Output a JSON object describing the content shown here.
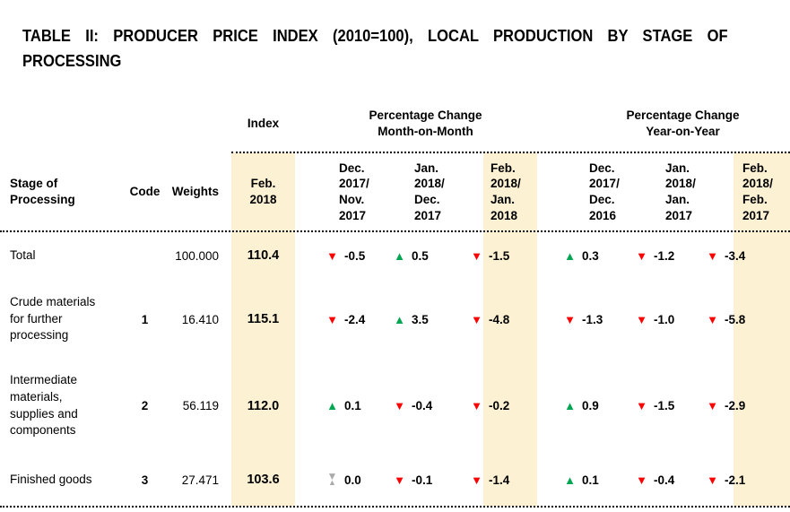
{
  "title": {
    "line1": "TABLE II: PRODUCER PRICE INDEX (2010=100), LOCAL PRODUCTION BY STAGE OF",
    "line2": "PROCESSING"
  },
  "table": {
    "group_headers": {
      "index": "Index",
      "mom_line1": "Percentage Change",
      "mom_line2": "Month-on-Month",
      "yoy_line1": "Percentage Change",
      "yoy_line2": "Year-on-Year"
    },
    "column_headers": {
      "stage": "Stage of\nProcessing",
      "code": "Code",
      "weights": "Weights",
      "index_period": "Feb.\n2018",
      "mom": [
        "Dec.\n2017/\nNov.\n2017",
        "Jan.\n2018/\nDec.\n2017",
        "Feb.\n2018/\nJan.\n2018"
      ],
      "yoy": [
        "Dec.\n2017/\nDec.\n2016",
        "Jan.\n2018/\nJan.\n2017",
        "Feb.\n2018/\nFeb.\n2017"
      ]
    },
    "rows": [
      {
        "stage": "Total",
        "code": "",
        "weights": "100.000",
        "index": "110.4",
        "changes": [
          {
            "dir": "down",
            "value": "-0.5"
          },
          {
            "dir": "up",
            "value": "0.5"
          },
          {
            "dir": "down",
            "value": "-1.5"
          },
          {
            "dir": "up",
            "value": "0.3"
          },
          {
            "dir": "down",
            "value": "-1.2"
          },
          {
            "dir": "down",
            "value": "-3.4"
          }
        ]
      },
      {
        "stage": "Crude materials\nfor further\nprocessing",
        "code": "1",
        "weights": "16.410",
        "index": "115.1",
        "changes": [
          {
            "dir": "down",
            "value": "-2.4"
          },
          {
            "dir": "up",
            "value": "3.5"
          },
          {
            "dir": "down",
            "value": "-4.8"
          },
          {
            "dir": "down",
            "value": "-1.3"
          },
          {
            "dir": "down",
            "value": "-1.0"
          },
          {
            "dir": "down",
            "value": "-5.8"
          }
        ]
      },
      {
        "stage": "Intermediate\nmaterials,\nsupplies and\ncomponents",
        "code": "2",
        "weights": "56.119",
        "index": "112.0",
        "changes": [
          {
            "dir": "up",
            "value": "0.1"
          },
          {
            "dir": "down",
            "value": "-0.4"
          },
          {
            "dir": "down",
            "value": "-0.2"
          },
          {
            "dir": "up",
            "value": "0.9"
          },
          {
            "dir": "down",
            "value": "-1.5"
          },
          {
            "dir": "down",
            "value": "-2.9"
          }
        ]
      },
      {
        "stage": "Finished goods",
        "code": "3",
        "weights": "27.471",
        "index": "103.6",
        "changes": [
          {
            "dir": "none",
            "value": "0.0"
          },
          {
            "dir": "down",
            "value": "-0.1"
          },
          {
            "dir": "down",
            "value": "-1.4"
          },
          {
            "dir": "up",
            "value": "0.1"
          },
          {
            "dir": "down",
            "value": "-0.4"
          },
          {
            "dir": "down",
            "value": "-2.1"
          }
        ]
      }
    ]
  },
  "colors": {
    "highlight_column": "#FCF1D2",
    "increase": "#00A651",
    "decrease": "#FF0000",
    "no_change": "#ABABAB"
  }
}
